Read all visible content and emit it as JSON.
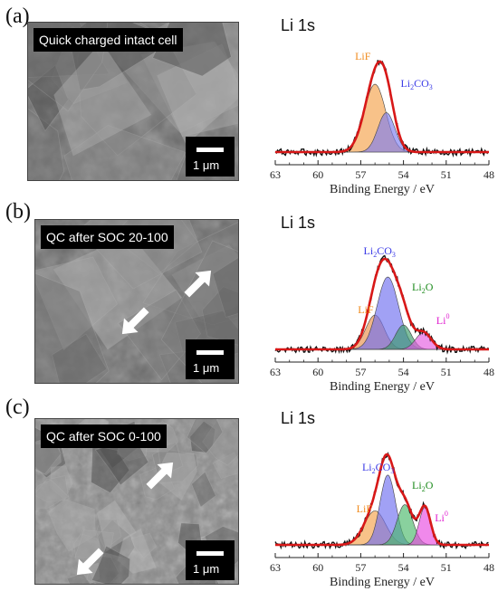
{
  "panels": [
    {
      "letter": "(a)",
      "sem_label": "Quick charged intact cell",
      "scale": "1 μm",
      "xps_title": "Li 1s",
      "arrows": [],
      "peaks": [
        {
          "name": "LiF",
          "center": 56.0,
          "sigma": 0.75,
          "amp": 1.0,
          "color": "#f5a14a",
          "label_color": "#f08a1c"
        },
        {
          "name": "Li2CO3",
          "center": 55.2,
          "sigma": 0.6,
          "amp": 0.58,
          "color": "#7c7cf0",
          "label_color": "#3a3ae6"
        }
      ],
      "labels": [
        {
          "peak": "LiF",
          "text": "LiF",
          "sub": "",
          "at_x": 57.4,
          "at_y": 1.02
        },
        {
          "peak": "Li2CO3",
          "text": "Li",
          "sub": "2",
          "tail": "CO",
          "sub2": "3",
          "at_x": 54.2,
          "at_y": 0.72
        }
      ]
    },
    {
      "letter": "(b)",
      "sem_label": "QC after SOC 20-100",
      "scale": "1 μm",
      "xps_title": "Li 1s",
      "arrows": [
        {
          "dir": "up-right"
        },
        {
          "dir": "down-left"
        }
      ],
      "peaks": [
        {
          "name": "LiF",
          "center": 56.0,
          "sigma": 0.65,
          "amp": 0.45,
          "color": "#e98f4a",
          "label_color": "#f08a1c"
        },
        {
          "name": "Li2CO3",
          "center": 55.1,
          "sigma": 0.75,
          "amp": 0.95,
          "color": "#6e6ef0",
          "label_color": "#3a3ae6"
        },
        {
          "name": "Li2O",
          "center": 54.0,
          "sigma": 0.55,
          "amp": 0.32,
          "color": "#3b9a6a",
          "label_color": "#1b8a1b"
        },
        {
          "name": "Li0",
          "center": 52.6,
          "sigma": 0.55,
          "amp": 0.22,
          "color": "#e55ae0",
          "label_color": "#e020d0"
        }
      ],
      "labels": [
        {
          "peak": "Li2CO3",
          "text": "Li",
          "sub": "2",
          "tail": "CO",
          "sub2": "3",
          "at_x": 56.8,
          "at_y": 1.05
        },
        {
          "peak": "Li2O",
          "text": "Li",
          "sub": "2",
          "tail": "O",
          "sub2": "",
          "at_x": 53.4,
          "at_y": 0.65
        },
        {
          "peak": "LiF",
          "text": "LiF",
          "sub": "",
          "at_x": 57.2,
          "at_y": 0.4
        },
        {
          "peak": "Li0",
          "text": "Li",
          "sup": "0",
          "at_x": 51.7,
          "at_y": 0.28
        }
      ]
    },
    {
      "letter": "(c)",
      "sem_label": "QC after SOC 0-100",
      "scale": "1 μm",
      "xps_title": "Li 1s",
      "arrows": [
        {
          "dir": "down-left"
        },
        {
          "dir": "up-right"
        }
      ],
      "peaks": [
        {
          "name": "LiF",
          "center": 56.0,
          "sigma": 0.75,
          "amp": 0.38,
          "color": "#f5a14a",
          "label_color": "#f08a1c"
        },
        {
          "name": "Li2CO3",
          "center": 55.1,
          "sigma": 0.55,
          "amp": 0.78,
          "color": "#6e6ef0",
          "label_color": "#3a3ae6"
        },
        {
          "name": "Li2O",
          "center": 53.9,
          "sigma": 0.55,
          "amp": 0.45,
          "color": "#4ab86a",
          "label_color": "#1b8a1b"
        },
        {
          "name": "Li0",
          "center": 52.5,
          "sigma": 0.4,
          "amp": 0.42,
          "color": "#e84ae0",
          "label_color": "#e020d0"
        }
      ],
      "labels": [
        {
          "peak": "Li2CO3",
          "text": "Li",
          "sub": "2",
          "tail": "CO",
          "sub2": "3",
          "at_x": 56.9,
          "at_y": 0.82
        },
        {
          "peak": "Li2O",
          "text": "Li",
          "sub": "2",
          "tail": "O",
          "sub2": "",
          "at_x": 53.4,
          "at_y": 0.62
        },
        {
          "peak": "LiF",
          "text": "LiF",
          "sub": "",
          "at_x": 57.3,
          "at_y": 0.36
        },
        {
          "peak": "Li0",
          "text": "Li",
          "sup": "0",
          "at_x": 51.8,
          "at_y": 0.26
        }
      ]
    }
  ],
  "chart_data": [
    {
      "type": "line",
      "title": "Li 1s",
      "xlabel": "Binding Energy / eV",
      "xlim": [
        63,
        48
      ],
      "xticks": [
        63,
        60,
        57,
        54,
        51,
        48
      ],
      "series": [
        {
          "name": "LiF"
        },
        {
          "name": "Li2CO3"
        }
      ]
    },
    {
      "type": "line",
      "title": "Li 1s",
      "xlabel": "Binding Energy / eV",
      "xlim": [
        63,
        48
      ],
      "xticks": [
        63,
        60,
        57,
        54,
        51,
        48
      ],
      "series": [
        {
          "name": "Li2CO3"
        },
        {
          "name": "Li2O"
        },
        {
          "name": "LiF"
        },
        {
          "name": "Li0"
        }
      ]
    },
    {
      "type": "line",
      "title": "Li 1s",
      "xlabel": "Binding Energy / eV",
      "xlim": [
        63,
        48
      ],
      "xticks": [
        63,
        60,
        57,
        54,
        51,
        48
      ],
      "series": [
        {
          "name": "Li2CO3"
        },
        {
          "name": "Li2O"
        },
        {
          "name": "LiF"
        },
        {
          "name": "Li0"
        }
      ]
    }
  ]
}
